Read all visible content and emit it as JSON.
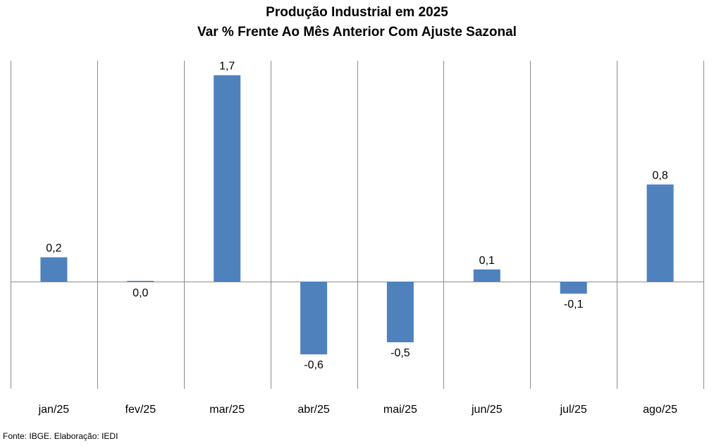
{
  "chart_data": {
    "type": "bar",
    "title": "Produção Industrial em 2025",
    "subtitle": "Var % Frente Ao Mês Anterior Com Ajuste Sazonal",
    "categories": [
      "jan/25",
      "fev/25",
      "mar/25",
      "abr/25",
      "mai/25",
      "jun/25",
      "jul/25",
      "ago/25"
    ],
    "values": [
      0.2,
      0.0,
      1.7,
      -0.6,
      -0.5,
      0.1,
      -0.1,
      0.8
    ],
    "value_labels": [
      "0,2",
      "0,0",
      "1,7",
      "-0,6",
      "-0,5",
      "0,1",
      "-0,1",
      "0,8"
    ],
    "xlabel": "",
    "ylabel": "",
    "ylim": [
      -0.9,
      1.8
    ],
    "grid": "vertical separators",
    "legend": "none",
    "bar_color": "#4F81BD",
    "grid_color": "#8C8C8C"
  },
  "source": "Fonte: IBGE. Elaboração: IEDI"
}
